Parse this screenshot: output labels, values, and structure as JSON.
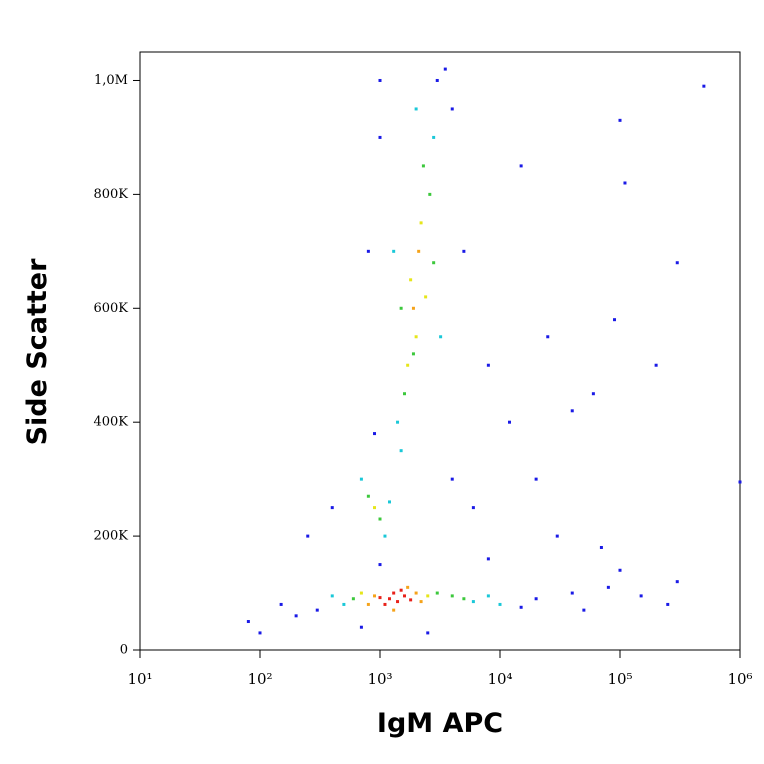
{
  "chart_data": {
    "type": "scatter",
    "x_label": "IgM APC",
    "y_label": "Side Scatter",
    "x_scale": "log",
    "xlim": [
      10,
      1000000
    ],
    "xticks": [
      {
        "value": 10,
        "label": "10¹"
      },
      {
        "value": 100,
        "label": "10²"
      },
      {
        "value": 1000,
        "label": "10³"
      },
      {
        "value": 10000,
        "label": "10⁴"
      },
      {
        "value": 100000,
        "label": "10⁵"
      },
      {
        "value": 1000000,
        "label": "10⁶"
      }
    ],
    "ylim": [
      0,
      1050000
    ],
    "yticks": [
      0,
      {
        "value": 200000,
        "label": "200K"
      },
      {
        "value": 400000,
        "label": "400K"
      },
      {
        "value": 600000,
        "label": "600K"
      },
      {
        "value": 800000,
        "label": "800K"
      },
      {
        "value": 1000000,
        "label": "1,0M"
      }
    ],
    "series": [
      {
        "color": "#1a1ae6",
        "x": [
          300,
          200,
          150,
          15000,
          20000,
          40000,
          80000,
          150000,
          300000,
          50000,
          100000,
          250000,
          1000,
          3500,
          4000,
          5000,
          8000,
          12000,
          20000,
          30000,
          60000,
          90000,
          100000,
          300000,
          500000,
          1000,
          900,
          4000,
          6000,
          800,
          1000,
          3000,
          400,
          250,
          80,
          100,
          700,
          2500,
          110000,
          200000,
          1000000,
          70000,
          40000,
          8000,
          15000,
          25000
        ],
        "values": [
          70000,
          60000,
          80000,
          75000,
          90000,
          100000,
          110000,
          95000,
          120000,
          70000,
          140000,
          80000,
          1000000,
          1020000,
          950000,
          700000,
          500000,
          400000,
          300000,
          200000,
          450000,
          580000,
          930000,
          680000,
          990000,
          150000,
          380000,
          300000,
          250000,
          700000,
          900000,
          1000000,
          250000,
          200000,
          50000,
          30000,
          40000,
          30000,
          820000,
          500000,
          295000,
          180000,
          420000,
          160000,
          850000,
          550000
        ]
      },
      {
        "color": "#1ac8d8",
        "x": [
          6000,
          500,
          8000,
          1400,
          2800,
          1300,
          3200,
          700,
          1100,
          1200,
          2000,
          10000,
          400,
          1500
        ],
        "values": [
          85000,
          80000,
          95000,
          400000,
          900000,
          700000,
          550000,
          300000,
          200000,
          260000,
          950000,
          80000,
          95000,
          350000
        ]
      },
      {
        "color": "#3cc83c",
        "x": [
          3000,
          600,
          4000,
          1600,
          2600,
          1500,
          2300,
          800,
          1000,
          2800,
          5000,
          1900
        ],
        "values": [
          100000,
          90000,
          95000,
          450000,
          800000,
          600000,
          850000,
          270000,
          230000,
          680000,
          90000,
          520000
        ]
      },
      {
        "color": "#e6e61a",
        "x": [
          2500,
          700,
          2000,
          1800,
          2200,
          1700,
          900,
          2400
        ],
        "values": [
          95000,
          100000,
          550000,
          650000,
          750000,
          500000,
          250000,
          620000
        ]
      },
      {
        "color": "#f5a31a",
        "x": [
          900,
          2000,
          2200,
          800,
          1700,
          1300,
          1900,
          2100
        ],
        "values": [
          95000,
          100000,
          85000,
          80000,
          110000,
          70000,
          600000,
          700000
        ]
      },
      {
        "color": "#e8221a",
        "x": [
          1200,
          1400,
          1300,
          1600,
          1100,
          1500,
          1000,
          1800
        ],
        "values": [
          90000,
          85000,
          100000,
          95000,
          80000,
          105000,
          92000,
          88000
        ]
      }
    ]
  }
}
